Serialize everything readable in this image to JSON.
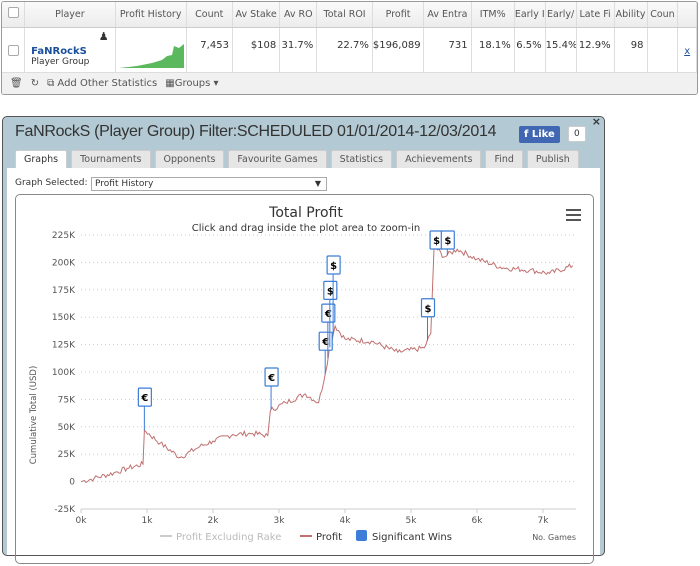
{
  "grid": {
    "headers": [
      "Player",
      "Profit History",
      "Count",
      "Av Stake",
      "Av ROI",
      "Total ROI",
      "Profit",
      "Av Entrants",
      "ITM%",
      "Early F",
      "Early/",
      "Late Fi",
      "Ability",
      "Count"
    ],
    "header_display": [
      "Player",
      "Profit History",
      "Count",
      "Av Stake",
      "Av RO",
      "Total ROI",
      "Profit",
      "Av Entra",
      "ITM%",
      "Early I",
      "Early/",
      "Late Fi",
      "Ability",
      "Coun"
    ],
    "row": {
      "name": "FaNRockS",
      "type": "Player Group",
      "count": "7,453",
      "av_stake": "$108",
      "av_roi": "31.7%",
      "total_roi": "22.7%",
      "profit": "$196,089",
      "av_entrants": "731",
      "itm": "18.1%",
      "early": "6.5%",
      "early_mid": "15.4%",
      "late": "12.9%",
      "ability": "98",
      "link": "x"
    },
    "footer": {
      "add_stats": "Add Other Statistics",
      "groups": "Groups"
    }
  },
  "dialog": {
    "title": "FaNRockS (Player Group) Filter:SCHEDULED 01/01/2014-12/03/2014",
    "like": "Like",
    "like_count": "0",
    "close": "×",
    "tabs": [
      "Graphs",
      "Tournaments",
      "Opponents",
      "Favourite Games",
      "Statistics",
      "Achievements",
      "Find",
      "Publish"
    ],
    "graph_selected_label": "Graph Selected:",
    "graph_selected": "Profit History"
  },
  "chart_data": {
    "type": "line",
    "title": "Total Profit",
    "subtitle": "Click and drag inside the plot area to zoom-in",
    "ylabel": "Cumulative Total (USD)",
    "xlabel": "No. Games",
    "xlim": [
      0,
      7500
    ],
    "ylim": [
      -25000,
      225000
    ],
    "xticks": [
      "0k",
      "1k",
      "2k",
      "3k",
      "4k",
      "5k",
      "6k",
      "7k"
    ],
    "yticks": [
      "-25K",
      "0",
      "25K",
      "50K",
      "75K",
      "100K",
      "125K",
      "150K",
      "175K",
      "200K",
      "225K"
    ],
    "legend": [
      "Profit Excluding Rake",
      "Profit",
      "Significant Wins"
    ],
    "colors": {
      "profit": "#c07070",
      "rake": "#cccccc",
      "wins": "#3b7dd8"
    },
    "profit": [
      [
        0,
        0
      ],
      [
        200,
        3000
      ],
      [
        500,
        8000
      ],
      [
        700,
        12000
      ],
      [
        940,
        16000
      ],
      [
        960,
        47000
      ],
      [
        1200,
        35000
      ],
      [
        1500,
        22000
      ],
      [
        1800,
        32000
      ],
      [
        2000,
        37000
      ],
      [
        2300,
        43000
      ],
      [
        2600,
        44000
      ],
      [
        2830,
        42000
      ],
      [
        2870,
        65000
      ],
      [
        3100,
        72000
      ],
      [
        3400,
        80000
      ],
      [
        3600,
        72000
      ],
      [
        3700,
        98000
      ],
      [
        3760,
        120000
      ],
      [
        3850,
        142000
      ],
      [
        4000,
        130000
      ],
      [
        4400,
        128000
      ],
      [
        4800,
        118000
      ],
      [
        5200,
        122000
      ],
      [
        5300,
        135000
      ],
      [
        5350,
        215000
      ],
      [
        5500,
        205000
      ],
      [
        5700,
        212000
      ],
      [
        6000,
        203000
      ],
      [
        6400,
        195000
      ],
      [
        6800,
        193000
      ],
      [
        7100,
        190000
      ],
      [
        7450,
        197000
      ]
    ],
    "significant_wins": [
      [
        960,
        "€"
      ],
      [
        2880,
        "€"
      ],
      [
        3700,
        "€"
      ],
      [
        3740,
        "€"
      ],
      [
        3770,
        "$"
      ],
      [
        3820,
        "$"
      ],
      [
        5250,
        "$"
      ],
      [
        5380,
        "$"
      ],
      [
        5550,
        "$"
      ]
    ]
  }
}
